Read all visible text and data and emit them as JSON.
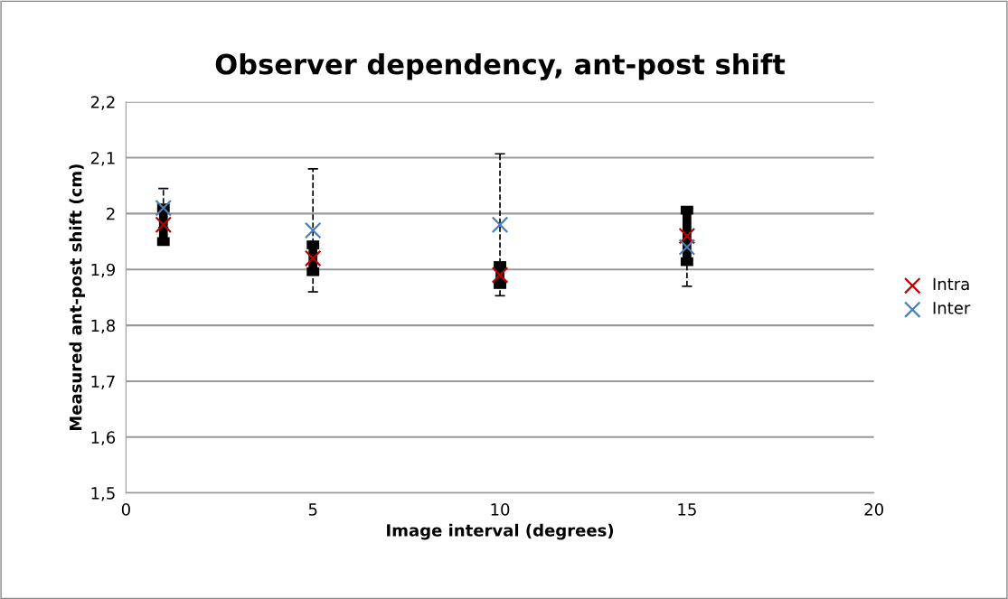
{
  "chart_data": {
    "type": "scatter",
    "title": "Observer dependency, ant-post shift",
    "xlabel": "Image interval (degrees)",
    "ylabel": "Measured ant-post shift (cm)",
    "x": [
      1,
      5,
      10,
      15
    ],
    "series": [
      {
        "name": "Intra",
        "color": "#c00000",
        "values": [
          1.98,
          1.92,
          1.89,
          1.96
        ],
        "errors": [
          0.03,
          0.024,
          0.017,
          0.046
        ]
      },
      {
        "name": "Inter",
        "color": "#4a7ebb",
        "values": [
          2.01,
          1.97,
          1.98,
          1.94
        ],
        "errors": [
          0.035,
          0.11,
          0.127,
          0.07
        ]
      }
    ],
    "xlim": [
      0,
      20
    ],
    "xticks": [
      0,
      5,
      10,
      15,
      20
    ],
    "ylim": [
      1.5,
      2.2
    ],
    "yticks": [
      {
        "value": 1.5,
        "label": "1,5"
      },
      {
        "value": 1.6,
        "label": "1,6"
      },
      {
        "value": 1.7,
        "label": "1,7"
      },
      {
        "value": 1.8,
        "label": "1,8"
      },
      {
        "value": 1.9,
        "label": "1,9"
      },
      {
        "value": 2,
        "label": "2"
      },
      {
        "value": 2.1,
        "label": "2,1"
      },
      {
        "value": 2.2,
        "label": "2,2"
      }
    ],
    "grid": "y",
    "legend": "right",
    "marker": "cross"
  }
}
